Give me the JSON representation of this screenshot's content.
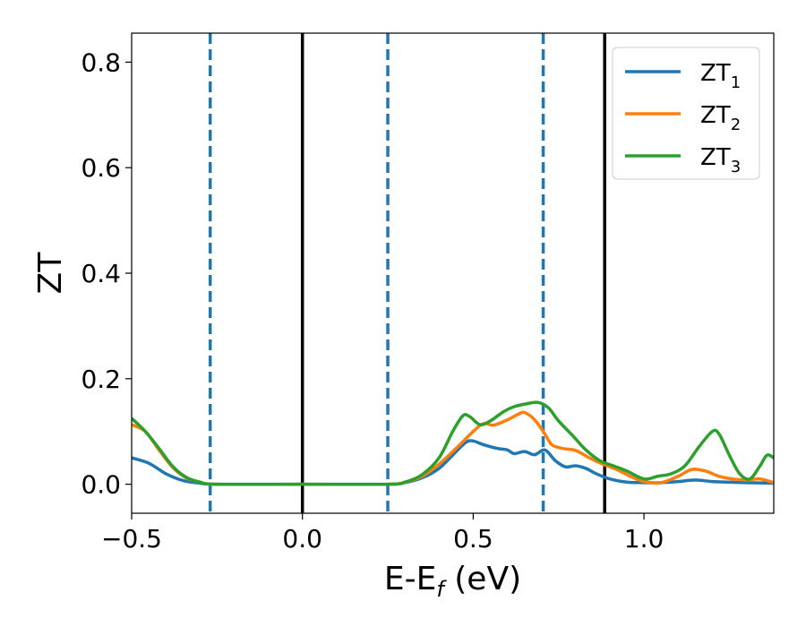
{
  "chart_data": {
    "type": "line",
    "xlabel_main": "E-E",
    "xlabel_sub": "f",
    "xlabel_tail": " (eV)",
    "ylabel": "ZT",
    "xlim": [
      -0.5,
      1.38
    ],
    "ylim": [
      -0.055,
      0.855
    ],
    "x_ticks": [
      {
        "value": -0.5,
        "label": "−0.5"
      },
      {
        "value": 0.0,
        "label": "0.0"
      },
      {
        "value": 0.5,
        "label": "0.5"
      },
      {
        "value": 1.0,
        "label": "1.0"
      }
    ],
    "y_ticks": [
      {
        "value": 0.0,
        "label": "0.0"
      },
      {
        "value": 0.2,
        "label": "0.2"
      },
      {
        "value": 0.4,
        "label": "0.4"
      },
      {
        "value": 0.6,
        "label": "0.6"
      },
      {
        "value": 0.8,
        "label": "0.8"
      }
    ],
    "grid": false,
    "legend_position": "top-right",
    "vlines_solid": [
      0.0,
      0.885
    ],
    "vlines_dashed": [
      -0.27,
      0.25,
      0.705
    ],
    "vline_colors": {
      "solid": "#000000",
      "dashed": "#1f77b4"
    },
    "series": [
      {
        "name": "ZT",
        "sub": "1",
        "color": "#1f77b4",
        "points": [
          [
            -0.5,
            0.05
          ],
          [
            -0.45,
            0.04
          ],
          [
            -0.4,
            0.02
          ],
          [
            -0.35,
            0.007
          ],
          [
            -0.3,
            0.002
          ],
          [
            -0.25,
            0.0
          ],
          [
            0.0,
            0.0
          ],
          [
            0.25,
            0.0
          ],
          [
            0.3,
            0.003
          ],
          [
            0.35,
            0.012
          ],
          [
            0.4,
            0.03
          ],
          [
            0.45,
            0.062
          ],
          [
            0.48,
            0.08
          ],
          [
            0.5,
            0.082
          ],
          [
            0.53,
            0.075
          ],
          [
            0.57,
            0.068
          ],
          [
            0.6,
            0.065
          ],
          [
            0.62,
            0.058
          ],
          [
            0.65,
            0.062
          ],
          [
            0.68,
            0.056
          ],
          [
            0.71,
            0.065
          ],
          [
            0.74,
            0.045
          ],
          [
            0.77,
            0.033
          ],
          [
            0.8,
            0.035
          ],
          [
            0.83,
            0.03
          ],
          [
            0.86,
            0.02
          ],
          [
            0.9,
            0.01
          ],
          [
            0.95,
            0.004
          ],
          [
            1.0,
            0.003
          ],
          [
            1.05,
            0.003
          ],
          [
            1.1,
            0.005
          ],
          [
            1.15,
            0.008
          ],
          [
            1.2,
            0.005
          ],
          [
            1.25,
            0.004
          ],
          [
            1.3,
            0.003
          ],
          [
            1.38,
            0.002
          ]
        ]
      },
      {
        "name": "ZT",
        "sub": "2",
        "color": "#ff7f0e",
        "points": [
          [
            -0.5,
            0.113
          ],
          [
            -0.46,
            0.1
          ],
          [
            -0.42,
            0.065
          ],
          [
            -0.38,
            0.032
          ],
          [
            -0.34,
            0.012
          ],
          [
            -0.3,
            0.004
          ],
          [
            -0.25,
            0.0
          ],
          [
            0.0,
            0.0
          ],
          [
            0.25,
            0.0
          ],
          [
            0.3,
            0.004
          ],
          [
            0.35,
            0.015
          ],
          [
            0.4,
            0.038
          ],
          [
            0.45,
            0.068
          ],
          [
            0.5,
            0.1
          ],
          [
            0.53,
            0.115
          ],
          [
            0.56,
            0.112
          ],
          [
            0.6,
            0.122
          ],
          [
            0.63,
            0.132
          ],
          [
            0.65,
            0.136
          ],
          [
            0.68,
            0.122
          ],
          [
            0.71,
            0.095
          ],
          [
            0.73,
            0.075
          ],
          [
            0.76,
            0.068
          ],
          [
            0.8,
            0.064
          ],
          [
            0.84,
            0.05
          ],
          [
            0.88,
            0.038
          ],
          [
            0.92,
            0.028
          ],
          [
            0.96,
            0.015
          ],
          [
            1.0,
            0.005
          ],
          [
            1.05,
            0.003
          ],
          [
            1.1,
            0.015
          ],
          [
            1.14,
            0.028
          ],
          [
            1.18,
            0.025
          ],
          [
            1.22,
            0.015
          ],
          [
            1.26,
            0.01
          ],
          [
            1.3,
            0.008
          ],
          [
            1.34,
            0.01
          ],
          [
            1.38,
            0.003
          ]
        ]
      },
      {
        "name": "ZT",
        "sub": "3",
        "color": "#2ca02c",
        "points": [
          [
            -0.5,
            0.125
          ],
          [
            -0.46,
            0.1
          ],
          [
            -0.42,
            0.068
          ],
          [
            -0.38,
            0.034
          ],
          [
            -0.34,
            0.013
          ],
          [
            -0.3,
            0.004
          ],
          [
            -0.25,
            0.0
          ],
          [
            0.0,
            0.0
          ],
          [
            0.25,
            0.0
          ],
          [
            0.3,
            0.004
          ],
          [
            0.35,
            0.018
          ],
          [
            0.4,
            0.05
          ],
          [
            0.44,
            0.1
          ],
          [
            0.47,
            0.13
          ],
          [
            0.49,
            0.128
          ],
          [
            0.52,
            0.113
          ],
          [
            0.55,
            0.12
          ],
          [
            0.59,
            0.138
          ],
          [
            0.62,
            0.147
          ],
          [
            0.66,
            0.153
          ],
          [
            0.69,
            0.155
          ],
          [
            0.72,
            0.145
          ],
          [
            0.75,
            0.12
          ],
          [
            0.79,
            0.093
          ],
          [
            0.83,
            0.065
          ],
          [
            0.87,
            0.045
          ],
          [
            0.91,
            0.035
          ],
          [
            0.95,
            0.025
          ],
          [
            1.0,
            0.01
          ],
          [
            1.04,
            0.015
          ],
          [
            1.08,
            0.02
          ],
          [
            1.12,
            0.035
          ],
          [
            1.16,
            0.07
          ],
          [
            1.2,
            0.1
          ],
          [
            1.22,
            0.095
          ],
          [
            1.25,
            0.055
          ],
          [
            1.28,
            0.02
          ],
          [
            1.31,
            0.01
          ],
          [
            1.34,
            0.035
          ],
          [
            1.36,
            0.055
          ],
          [
            1.38,
            0.05
          ]
        ]
      }
    ]
  }
}
